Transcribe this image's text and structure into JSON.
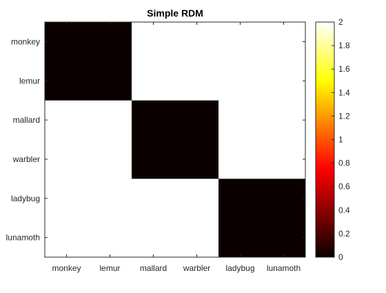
{
  "chart_data": {
    "type": "heatmap",
    "title": "Simple RDM",
    "xlabel": "",
    "ylabel": "",
    "x_categories": [
      "monkey",
      "lemur",
      "mallard",
      "warbler",
      "ladybug",
      "lunamoth"
    ],
    "y_categories": [
      "monkey",
      "lemur",
      "mallard",
      "warbler",
      "ladybug",
      "lunamoth"
    ],
    "values": [
      [
        0,
        0,
        2,
        2,
        2,
        2
      ],
      [
        0,
        0,
        2,
        2,
        2,
        2
      ],
      [
        2,
        2,
        0,
        0,
        2,
        2
      ],
      [
        2,
        2,
        0,
        0,
        2,
        2
      ],
      [
        2,
        2,
        2,
        2,
        0,
        0
      ],
      [
        2,
        2,
        2,
        2,
        0,
        0
      ]
    ],
    "colormap": "hot",
    "clim": [
      0,
      2
    ],
    "colorbar": {
      "location": "right",
      "ticks": [
        0,
        0.2,
        0.4,
        0.6,
        0.8,
        1,
        1.2,
        1.4,
        1.6,
        1.8,
        2
      ],
      "tick_labels": [
        "0",
        "0.2",
        "0.4",
        "0.6",
        "0.8",
        "1",
        "1.2",
        "1.4",
        "1.6",
        "1.8",
        "2"
      ]
    },
    "grid": false
  }
}
